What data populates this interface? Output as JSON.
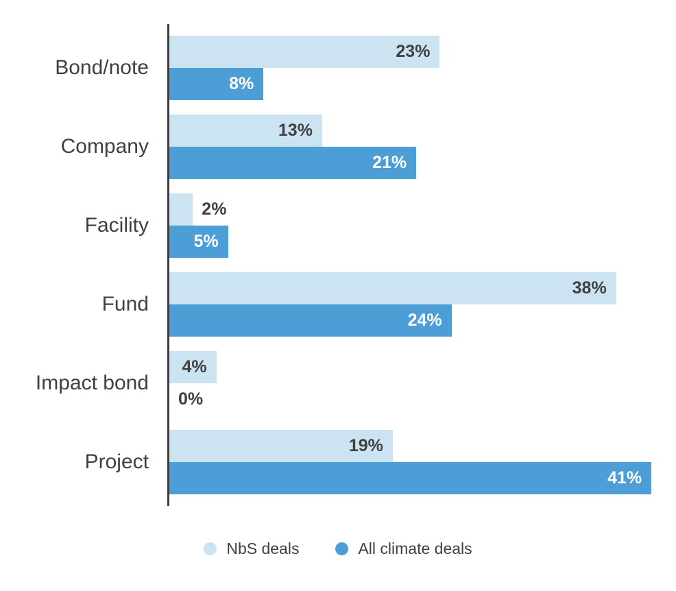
{
  "page": {
    "background_color": "#ffffff",
    "text_color": "#404040",
    "axis_color": "#3d3d3d"
  },
  "chart_data": {
    "type": "bar",
    "orientation": "horizontal",
    "title": "",
    "xlabel": "",
    "ylabel": "",
    "xlim": [
      0,
      43
    ],
    "grid": false,
    "legend_position": "bottom",
    "value_suffix": "%",
    "categories": [
      "Bond/note",
      "Company",
      "Facility",
      "Fund",
      "Impact bond",
      "Project"
    ],
    "series": [
      {
        "name": "NbS deals",
        "color": "#cce3f2",
        "label_color_inside": "#404040",
        "values": [
          23,
          13,
          2,
          38,
          4,
          19
        ],
        "labels": [
          "23%",
          "13%",
          "2%",
          "38%",
          "4%",
          "19%"
        ]
      },
      {
        "name": "All climate deals",
        "color": "#4d9ed6",
        "label_color_inside": "#ffffff",
        "values": [
          8,
          21,
          5,
          24,
          0,
          41
        ],
        "labels": [
          "8%",
          "21%",
          "5%",
          "24%",
          "0%",
          "41%"
        ]
      }
    ]
  }
}
